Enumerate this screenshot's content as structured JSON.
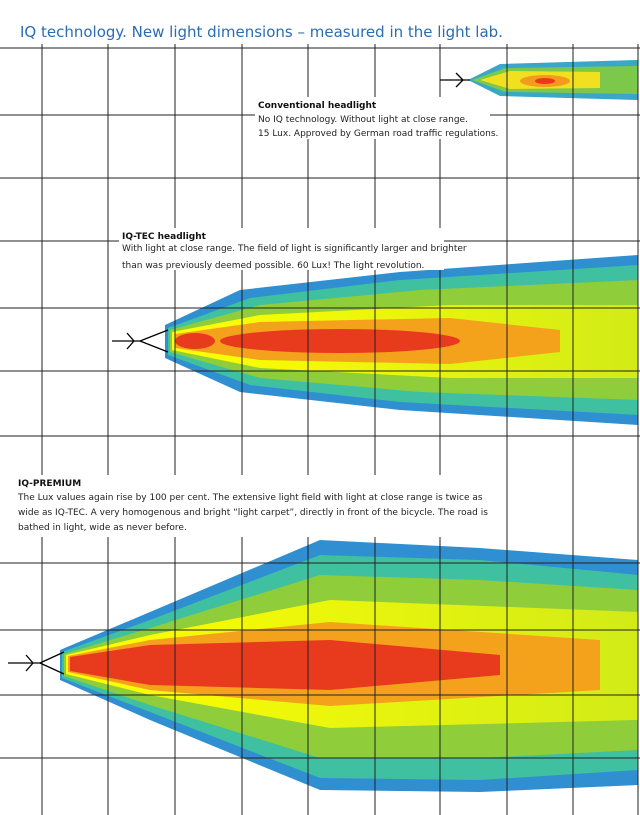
{
  "header": {
    "title": "IQ technology. New light dimensions – measured in the light lab."
  },
  "sections": [
    {
      "heading": "Conventional headlight",
      "lines": [
        "No IQ technology. Without light at close range.",
        "15 Lux. Approved by German road traffic regulations."
      ]
    },
    {
      "heading": "IQ-TEC headlight",
      "lines": [
        "With light at close range. The field of light is significantly larger and brighter",
        "than was previously deemed possible. 60 Lux! The light revolution."
      ]
    },
    {
      "heading": "IQ-PREMIUM",
      "lines": [
        "The Lux values again rise by 100 per cent. The extensive light field with light at close range is twice as",
        "wide as IQ-TEC. A very homogenous and bright “light carpet”, directly in front of the bicycle. The road is",
        "bathed in light, wide as never before."
      ]
    }
  ]
}
